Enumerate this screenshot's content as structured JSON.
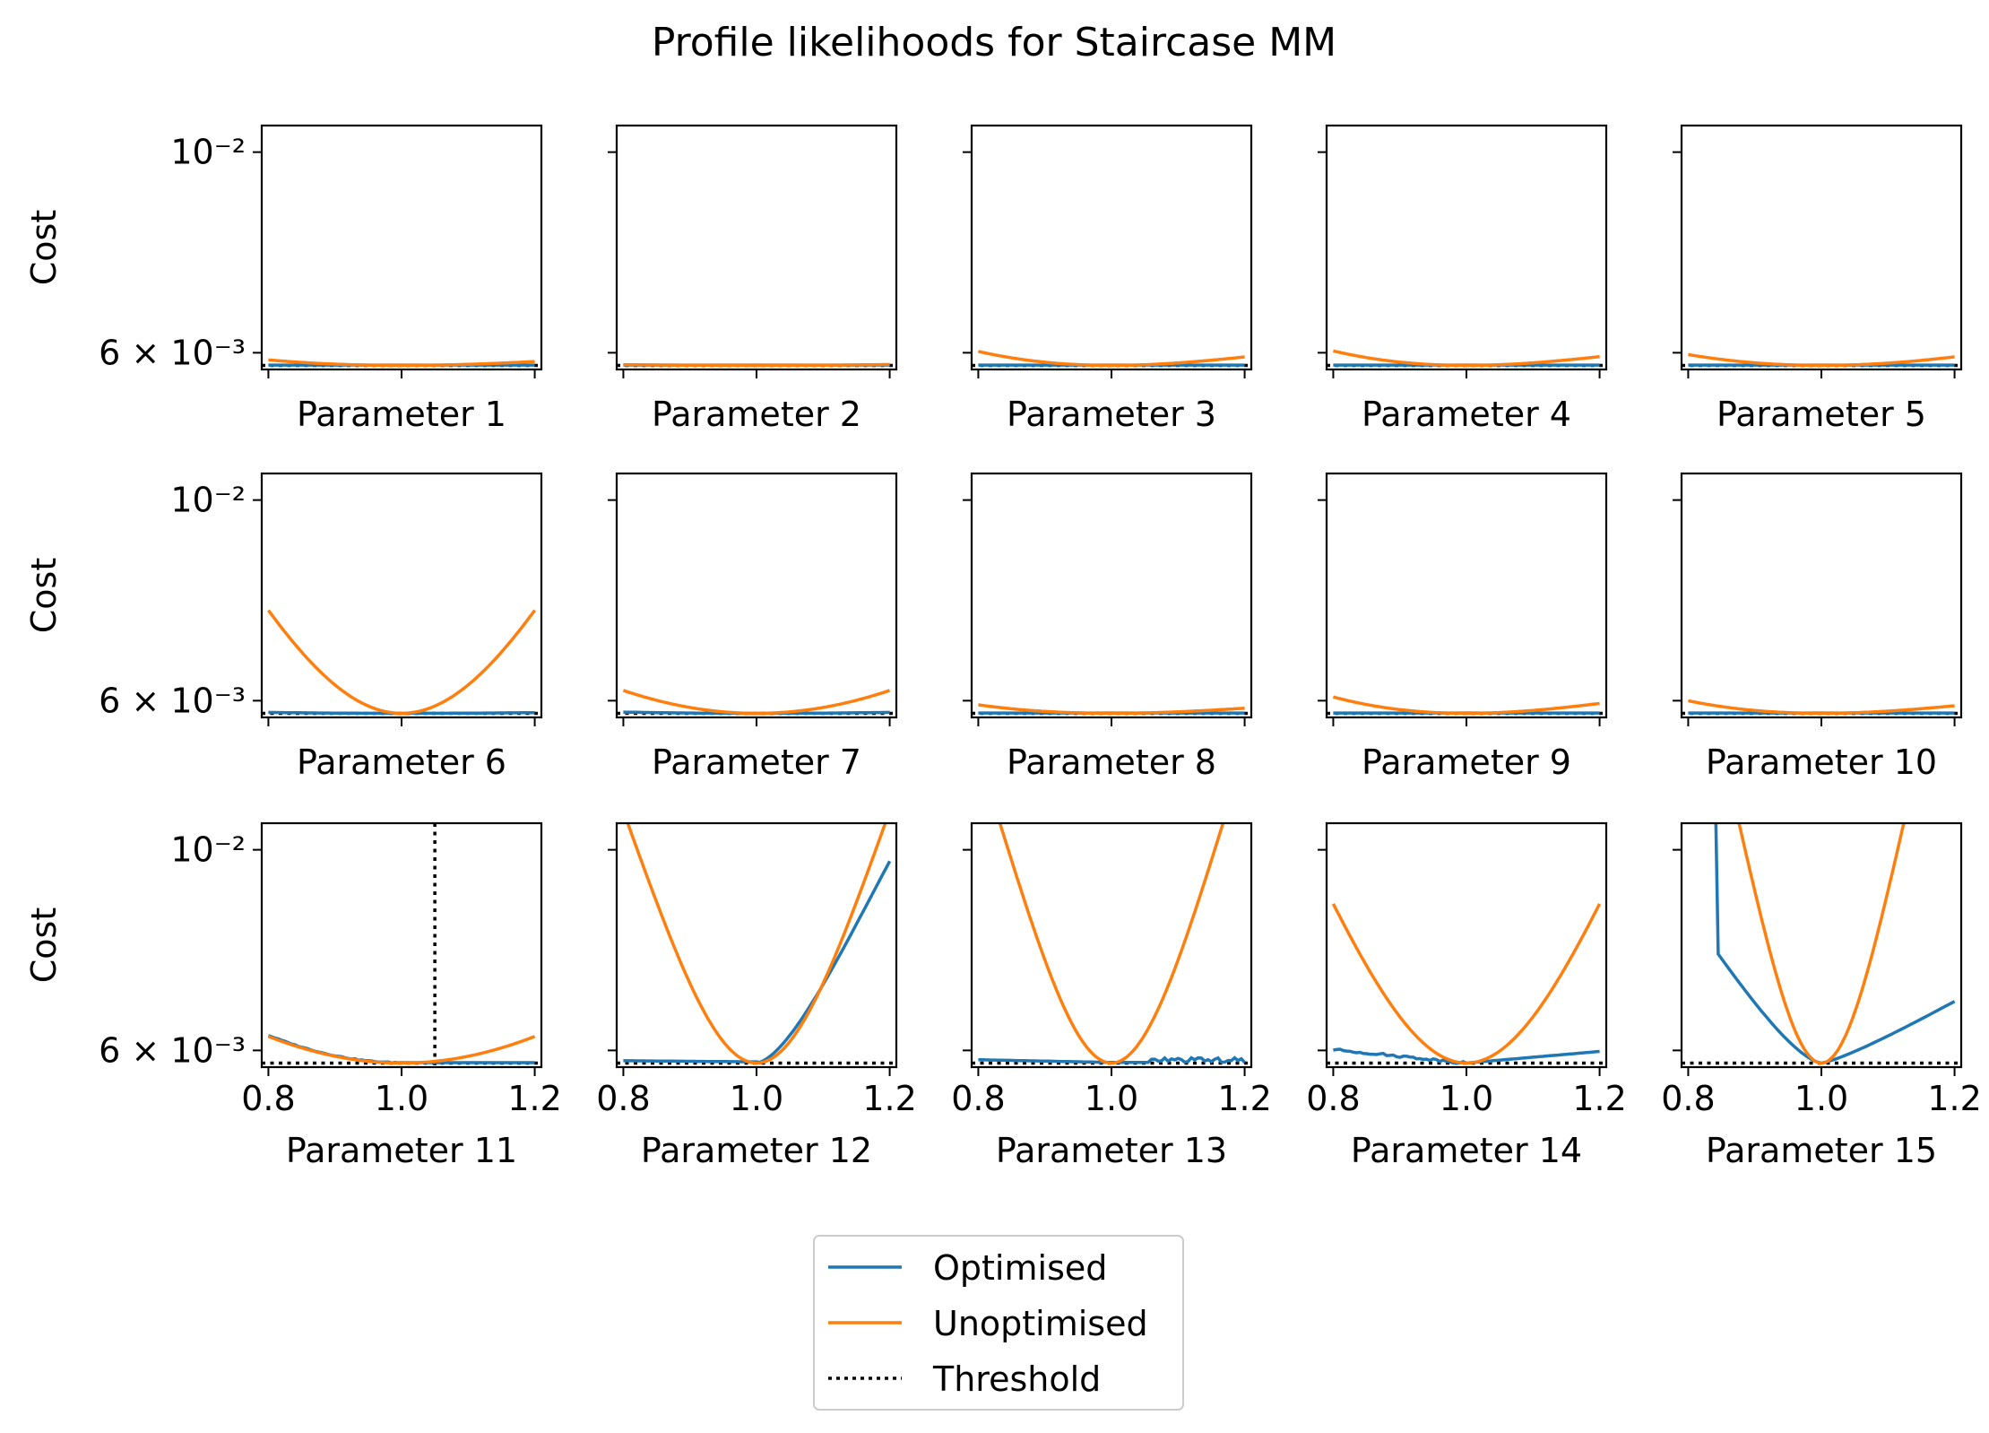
{
  "figure": {
    "title": "Profile likelihoods for Staircase MM"
  },
  "legend": {
    "placement": "bottom-center",
    "items": [
      {
        "label": "Optimised",
        "color": "#1f77b4",
        "style": "solid"
      },
      {
        "label": "Unoptimised",
        "color": "#ff7f0e",
        "style": "solid"
      },
      {
        "label": "Threshold",
        "color": "#000000",
        "style": "dotted"
      }
    ]
  },
  "chart_data": {
    "type": "line",
    "layout": "grid 3x5, shared axes",
    "ylabel": "Cost",
    "yscale": "log",
    "ylim": [
      0.00575,
      0.0107
    ],
    "xlim": [
      0.79,
      1.21
    ],
    "xticks": [
      0.8,
      1.0,
      1.2
    ],
    "yticks": [
      {
        "value": 0.006,
        "label": "6 × 10⁻³"
      },
      {
        "value": 0.01,
        "label": "10⁻²"
      }
    ],
    "threshold": 0.00581,
    "min_cost": 0.00581,
    "panels": [
      {
        "xlabel": "Parameter 1",
        "optimised": "flat",
        "unoptimised_curvature": 0.012,
        "unoptimised_skew": -0.18
      },
      {
        "xlabel": "Parameter 2",
        "optimised": "flat",
        "unoptimised_curvature": 0.0021,
        "unoptimised_skew": 0.1
      },
      {
        "xlabel": "Parameter 3",
        "optimised": "flat",
        "unoptimised_curvature": 0.029,
        "unoptimised_skew": -0.25
      },
      {
        "xlabel": "Parameter 4",
        "optimised": "flat",
        "unoptimised_curvature": 0.03,
        "unoptimised_skew": -0.25
      },
      {
        "xlabel": "Parameter 5",
        "optimised": "flat",
        "unoptimised_curvature": 0.025,
        "unoptimised_skew": -0.12
      },
      {
        "xlabel": "Parameter 6",
        "optimised": "shallow-bowl",
        "optimised_curvature": 0.0018,
        "unoptimised_curvature": 0.3,
        "unoptimised_skew": 0
      },
      {
        "xlabel": "Parameter 7",
        "optimised": "shallow-bowl",
        "optimised_curvature": 0.0024,
        "unoptimised_curvature": 0.06,
        "unoptimised_skew": 0
      },
      {
        "xlabel": "Parameter 8",
        "optimised": "flat",
        "unoptimised_curvature": 0.0175,
        "unoptimised_skew": -0.25
      },
      {
        "xlabel": "Parameter 9",
        "optimised": "flat",
        "unoptimised_curvature": 0.034,
        "unoptimised_skew": -0.25
      },
      {
        "xlabel": "Parameter 10",
        "optimised": "flat",
        "unoptimised_curvature": 0.026,
        "unoptimised_skew": -0.25
      },
      {
        "xlabel": "Parameter 11",
        "optimised": "left-shoulder",
        "optimised_curvature": 0.0055,
        "unoptimised_curvature": 0.07,
        "unoptimised_skew": 0,
        "vline": 1.05
      },
      {
        "xlabel": "Parameter 12",
        "optimised": "right-rise",
        "optimised_curvature": 0.45,
        "unoptimised_curvature": 0.9,
        "unoptimised_skew": 0
      },
      {
        "xlabel": "Parameter 13",
        "optimised": "noisy-right",
        "optimised_curvature": 0.002,
        "unoptimised_curvature": 1.2,
        "unoptimised_skew": 0
      },
      {
        "xlabel": "Parameter 14",
        "optimised": "noisy-left",
        "optimised_curvature": 0.004,
        "unoptimised_curvature": 0.5,
        "unoptimised_skew": 0
      },
      {
        "xlabel": "Parameter 15",
        "optimised": "steep-left",
        "optimised_curvature": 0.025,
        "unoptimised_curvature": 2.2,
        "unoptimised_skew": 0
      }
    ]
  }
}
